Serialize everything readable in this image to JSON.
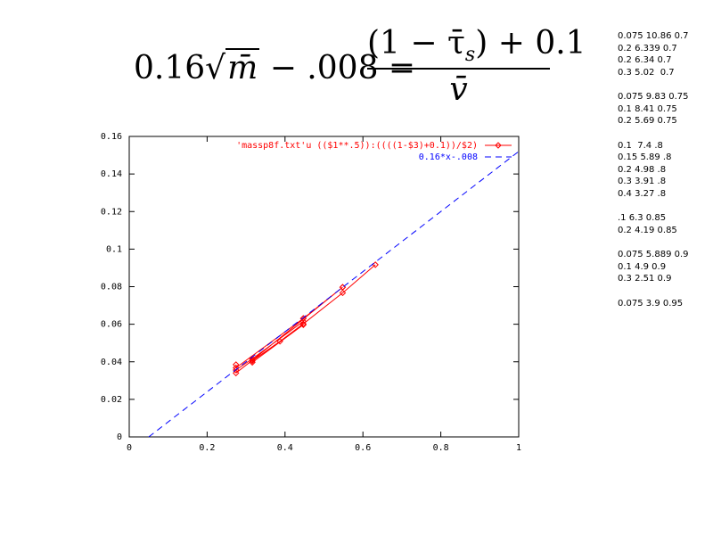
{
  "equation": {
    "lhs_coef": "0.16",
    "lhs_var": "m̄",
    "lhs_rest": "− .008 =",
    "numerator": "(1 − τ̄",
    "numerator_sub": "s",
    "numerator_rest": ") + 0.1",
    "denominator": "v̄"
  },
  "data_text": [
    [
      "0.075 10.86 0.7",
      "0.2 6.339 0.7",
      "0.2 6.34 0.7",
      "0.3 5.02  0.7"
    ],
    [
      "0.075 9.83 0.75",
      "0.1 8.41 0.75",
      "0.2 5.69 0.75"
    ],
    [
      "0.1  7.4 .8",
      "0.15 5.89 .8",
      "0.2 4.98 .8",
      "0.3 3.91 .8",
      "0.4 3.27 .8"
    ],
    [
      ".1 6.3 0.85",
      "0.2 4.19 0.85"
    ],
    [
      "0.075 5.889 0.9",
      "0.1 4.9 0.9",
      "0.3 2.51 0.9"
    ],
    [
      "0.075 3.9 0.95"
    ]
  ],
  "chart_data": {
    "type": "line",
    "xlim": [
      0,
      1
    ],
    "xticks": [
      0,
      0.2,
      0.4,
      0.6,
      0.8,
      1
    ],
    "ylim": [
      0,
      0.16
    ],
    "yticks": [
      0,
      0.02,
      0.04,
      0.06,
      0.08,
      0.1,
      0.12,
      0.14,
      0.16
    ],
    "legend": "top-right",
    "series": [
      {
        "name": "'massp8f.txt'u (($1**.5)):((((1-$3)+0.1))/$2)",
        "color": "#ff0000",
        "marker": "diamond",
        "x": [
          0.274,
          0.447,
          0.447,
          0.548,
          null,
          0.274,
          0.316,
          0.447,
          null,
          0.316,
          0.387,
          0.447,
          0.548,
          0.632,
          null,
          0.316,
          0.447,
          null,
          0.274,
          0.316,
          0.548,
          null,
          0.274
        ],
        "values": [
          0.0368,
          0.0631,
          0.0631,
          0.0797,
          null,
          0.0356,
          0.0416,
          0.0615,
          null,
          0.0405,
          0.0509,
          0.0602,
          0.0767,
          0.0917,
          null,
          0.0397,
          0.0597,
          null,
          0.034,
          0.0408,
          0.0797,
          null,
          0.0385
        ]
      },
      {
        "name": "0.16*x-.008",
        "color": "#0000ff",
        "dash": true,
        "x": [
          0.05,
          1
        ],
        "values": [
          0,
          0.152
        ]
      }
    ]
  }
}
